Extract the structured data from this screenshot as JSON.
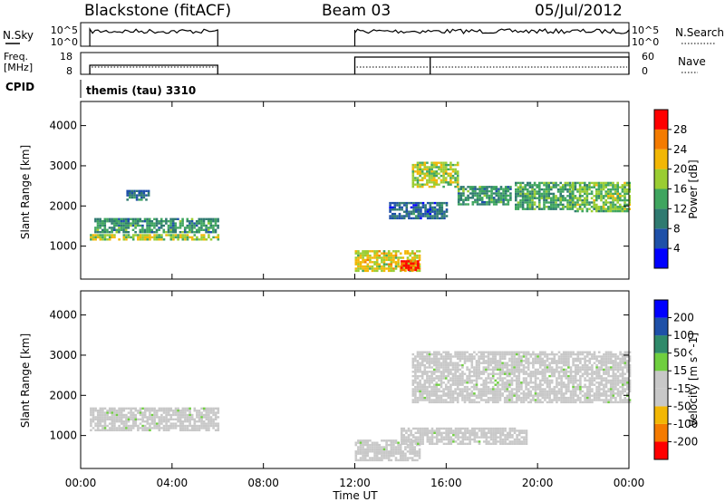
{
  "header": {
    "station": "Blackstone (fitACF)",
    "beam": "Beam 03",
    "date": "05/Jul/2012"
  },
  "params": {
    "nsky_label": "N.Sky",
    "nsearch_label": "N.Search",
    "freq_label_1": "Freq.",
    "freq_label_2": "[MHz]",
    "nave_label": "Nave",
    "cpid_label": "CPID",
    "cpid_value": "themis (tau) 3310",
    "nsky_ticks": [
      "10^5",
      "10^0"
    ],
    "nsearch_ticks": [
      "10^5",
      "10^0"
    ],
    "freq_ticks": [
      "18",
      "8"
    ],
    "nave_ticks": [
      "60",
      "0"
    ],
    "data_segments_hours": [
      [
        0.4,
        6.0
      ],
      [
        12.0,
        24.0
      ]
    ]
  },
  "axes": {
    "x_ticks": [
      "00:00",
      "04:00",
      "08:00",
      "12:00",
      "16:00",
      "20:00",
      "00:00"
    ],
    "x_label": "Time UT",
    "y_ticks": [
      "1000",
      "2000",
      "3000",
      "4000"
    ],
    "y_label": "Slant Range [km]",
    "xlim_hours": [
      0,
      24
    ],
    "ylim_km": [
      180,
      4600
    ]
  },
  "chart_data": [
    {
      "type": "heatmap",
      "panel": "power",
      "ylabel": "Slant Range [km]",
      "xlabel": "Time UT",
      "colorbar": {
        "label": "Power [dB]",
        "ticks": [
          "28",
          "24",
          "20",
          "16",
          "12",
          "8",
          "4"
        ],
        "range": [
          0,
          32
        ],
        "colors": [
          "#0000ff",
          "#1e50a8",
          "#2f7a70",
          "#3fa55f",
          "#9acd32",
          "#f2b705",
          "#f47b00",
          "#ff0000"
        ]
      },
      "regions": [
        {
          "t": [
            0.4,
            6.0
          ],
          "r": [
            1150,
            1300
          ],
          "v": 18
        },
        {
          "t": [
            0.6,
            6.0
          ],
          "r": [
            1350,
            1700
          ],
          "v": 12
        },
        {
          "t": [
            12.0,
            14.8
          ],
          "r": [
            380,
            900
          ],
          "v": 20
        },
        {
          "t": [
            14.0,
            14.8
          ],
          "r": [
            380,
            650
          ],
          "v": 28
        },
        {
          "t": [
            14.5,
            16.5
          ],
          "r": [
            2500,
            3100
          ],
          "v": 18
        },
        {
          "t": [
            16.5,
            18.8
          ],
          "r": [
            2050,
            2500
          ],
          "v": 12
        },
        {
          "t": [
            19.0,
            21.5
          ],
          "r": [
            1900,
            2600
          ],
          "v": 14
        },
        {
          "t": [
            21.5,
            24.0
          ],
          "r": [
            1850,
            2600
          ],
          "v": 16
        },
        {
          "t": [
            13.5,
            16.0
          ],
          "r": [
            1700,
            2100
          ],
          "v": 8
        },
        {
          "t": [
            2.0,
            3.0
          ],
          "r": [
            2150,
            2400
          ],
          "v": 10
        }
      ]
    },
    {
      "type": "heatmap",
      "panel": "velocity",
      "ylabel": "Slant Range [km]",
      "xlabel": "Time UT",
      "colorbar": {
        "label": "Velocity [m s^-1]",
        "ticks": [
          "200",
          "100",
          "50",
          "15",
          "-15",
          "-50",
          "-100",
          "-200"
        ],
        "range": [
          -250,
          250
        ],
        "colors": [
          "#ff0000",
          "#f47b00",
          "#f2b705",
          "#c8c8c8",
          "#c8c8c8",
          "#6fcf3f",
          "#2f8a6a",
          "#1e50a8",
          "#0000ff"
        ]
      },
      "regions": [
        {
          "t": [
            0.4,
            6.0
          ],
          "r": [
            1150,
            1700
          ],
          "v": 0
        },
        {
          "t": [
            12.0,
            14.8
          ],
          "r": [
            380,
            900
          ],
          "v": 0
        },
        {
          "t": [
            14.5,
            24.0
          ],
          "r": [
            1850,
            3100
          ],
          "v": 0
        },
        {
          "t": [
            14.0,
            19.5
          ],
          "r": [
            800,
            1200
          ],
          "v": 0
        }
      ]
    }
  ]
}
